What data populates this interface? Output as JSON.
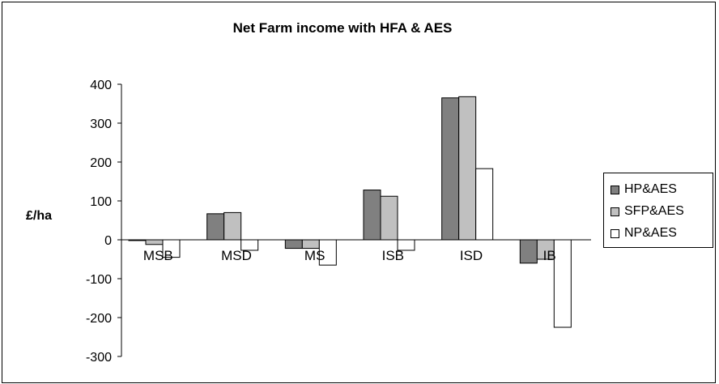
{
  "chart_data": {
    "type": "bar",
    "title": "Net Farm income with HFA & AES",
    "ylabel": "£/ha",
    "xlabel": "",
    "categories": [
      "MSB",
      "MSD",
      "MS",
      "ISB",
      "ISD",
      "IB"
    ],
    "series": [
      {
        "name": "HP&AES",
        "color": "#808080",
        "values": [
          -2,
          67,
          -22,
          128,
          365,
          -60
        ]
      },
      {
        "name": "SFP&AES",
        "color": "#c0c0c0",
        "values": [
          -12,
          70,
          -22,
          112,
          368,
          -50
        ]
      },
      {
        "name": "NP&AES",
        "color": "#ffffff",
        "values": [
          -45,
          -27,
          -65,
          -27,
          183,
          -225
        ]
      }
    ],
    "ylim": [
      -300,
      400
    ],
    "yticks": [
      400,
      300,
      200,
      100,
      0,
      -100,
      -200,
      -300
    ],
    "grid": false,
    "legend": "right"
  }
}
